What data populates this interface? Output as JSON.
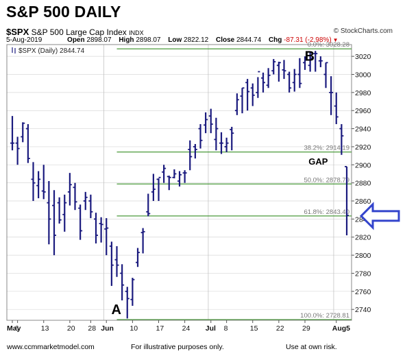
{
  "title": "S&P 500 DAILY",
  "symbol": "$SPX",
  "index_name": "S&P 500 Large Cap Index",
  "exchange": "INDX",
  "source": "© StockCharts.com",
  "date": "5-Aug-2019",
  "open_label": "Open",
  "open": "2898.07",
  "high_label": "High",
  "high": "2898.07",
  "low_label": "Low",
  "low": "2822.12",
  "close_label": "Close",
  "close": "2844.74",
  "chg_label": "Chg",
  "chg": "-87.31 (-2.98%)",
  "footer": {
    "left": "www.ccmmarketmodel.com",
    "center": "For illustrative purposes only.",
    "right": "Use at own risk."
  },
  "colors": {
    "price_bar": "#1a1a7e",
    "fib_line": "#4a9a3a",
    "grid": "#d8d8d8",
    "arrow": "#3344cc",
    "negative": "#cc0000"
  },
  "icons": {
    "chart_marker": "ohlc-bar-icon",
    "pointer": "left-arrow-icon"
  },
  "chart_data": {
    "type": "ohlc",
    "legend": "$SPX (Daily) 2844.74",
    "y_ticks": [
      2740,
      2760,
      2780,
      2800,
      2820,
      2840,
      2860,
      2880,
      2900,
      2920,
      2940,
      2960,
      2980,
      3000,
      3020
    ],
    "y_range": [
      2728,
      3033
    ],
    "x_labels": [
      "May",
      "6",
      "13",
      "20",
      "28",
      "Jun",
      "10",
      "17",
      "24",
      "Jul",
      "8",
      "15",
      "22",
      "29",
      "Aug5"
    ],
    "x_label_index": [
      0,
      1,
      6,
      11,
      15,
      18,
      23,
      28,
      33,
      38,
      41,
      46,
      51,
      56,
      62
    ],
    "fib_levels": [
      {
        "label": "0.0%: 3028.28",
        "value": 3028.28
      },
      {
        "label": "38.2%: 2914.19",
        "value": 2914.19
      },
      {
        "label": "50.0%: 2878.79",
        "value": 2878.79
      },
      {
        "label": "61.8%: 2843.40",
        "value": 2843.4
      },
      {
        "label": "100.0%: 2728.81",
        "value": 2728.81
      }
    ],
    "annotations": [
      {
        "text": "A",
        "index": 20,
        "value": 2735
      },
      {
        "text": "B",
        "index": 57,
        "value": 3015
      },
      {
        "text": "GAP",
        "index": 58,
        "value": 2898
      }
    ],
    "arrow_value": 2843.4,
    "bars": [
      [
        2924,
        2954,
        2916,
        2924
      ],
      [
        2924,
        2931,
        2900,
        2918
      ],
      [
        2931,
        2947,
        2925,
        2946
      ],
      [
        2940,
        2945,
        2902,
        2907
      ],
      [
        2884,
        2903,
        2860,
        2880
      ],
      [
        2877,
        2893,
        2863,
        2884
      ],
      [
        2871,
        2900,
        2862,
        2870
      ],
      [
        2858,
        2882,
        2812,
        2840
      ],
      [
        2855,
        2872,
        2800,
        2822
      ],
      [
        2858,
        2864,
        2835,
        2839
      ],
      [
        2845,
        2867,
        2826,
        2858
      ],
      [
        2870,
        2891,
        2855,
        2878
      ],
      [
        2875,
        2880,
        2850,
        2859
      ],
      [
        2852,
        2856,
        2817,
        2827
      ],
      [
        2860,
        2870,
        2850,
        2864
      ],
      [
        2860,
        2867,
        2841,
        2848
      ],
      [
        2840,
        2847,
        2813,
        2822
      ],
      [
        2835,
        2842,
        2814,
        2834
      ],
      [
        2829,
        2841,
        2800,
        2830
      ],
      [
        2810,
        2815,
        2766,
        2789
      ],
      [
        2795,
        2810,
        2776,
        2789
      ],
      [
        2780,
        2790,
        2750,
        2767
      ],
      [
        2760,
        2765,
        2730,
        2752
      ],
      [
        2751,
        2775,
        2744,
        2773
      ],
      [
        2792,
        2808,
        2787,
        2803
      ],
      [
        2825,
        2830,
        2802,
        2826
      ],
      [
        2848,
        2868,
        2843,
        2846
      ],
      [
        2870,
        2890,
        2860,
        2873
      ],
      [
        2884,
        2885,
        2860,
        2886
      ],
      [
        2892,
        2900,
        2880,
        2896
      ],
      [
        2887,
        2888,
        2872,
        2886
      ],
      [
        2886,
        2895,
        2885,
        2890
      ],
      [
        2882,
        2893,
        2876,
        2889
      ],
      [
        2891,
        2894,
        2880,
        2891
      ],
      [
        2917,
        2927,
        2894,
        2909
      ],
      [
        2920,
        2923,
        2907,
        2917
      ],
      [
        2940,
        2945,
        2918,
        2927
      ],
      [
        2944,
        2958,
        2935,
        2950
      ],
      [
        2954,
        2962,
        2935,
        2945
      ],
      [
        2928,
        2952,
        2916,
        2940
      ],
      [
        2924,
        2936,
        2912,
        2924
      ],
      [
        2920,
        2930,
        2914,
        2924
      ],
      [
        2939,
        2942,
        2916,
        2935
      ],
      [
        2960,
        2979,
        2955,
        2972
      ],
      [
        2976,
        2985,
        2957,
        2985
      ],
      [
        2991,
        2995,
        2960,
        2981
      ],
      [
        2985,
        2990,
        2965,
        2977
      ],
      [
        2980,
        2997,
        2974,
        3003
      ],
      [
        2996,
        3002,
        2980,
        2991
      ],
      [
        2988,
        3007,
        2985,
        2999
      ],
      [
        3004,
        3017,
        3000,
        3014
      ],
      [
        3010,
        3014,
        2992,
        3013
      ],
      [
        3005,
        3016,
        2995,
        3004
      ],
      [
        3000,
        3003,
        2980,
        2985
      ],
      [
        2991,
        3006,
        2981,
        3000
      ],
      [
        3000,
        3018,
        2985,
        2990
      ],
      [
        3013,
        3020,
        3005,
        3018
      ],
      [
        3010,
        3025,
        3003,
        3018
      ],
      [
        3023,
        3026,
        3003,
        3023
      ],
      [
        3015,
        3020,
        3008,
        3015
      ],
      [
        3000,
        3013,
        2985,
        3013
      ],
      [
        2980,
        2998,
        2955,
        2980
      ],
      [
        2965,
        2980,
        2945,
        2953
      ],
      [
        2940,
        2945,
        2911,
        2932
      ],
      [
        2898,
        2898,
        2822,
        2844
      ]
    ]
  }
}
